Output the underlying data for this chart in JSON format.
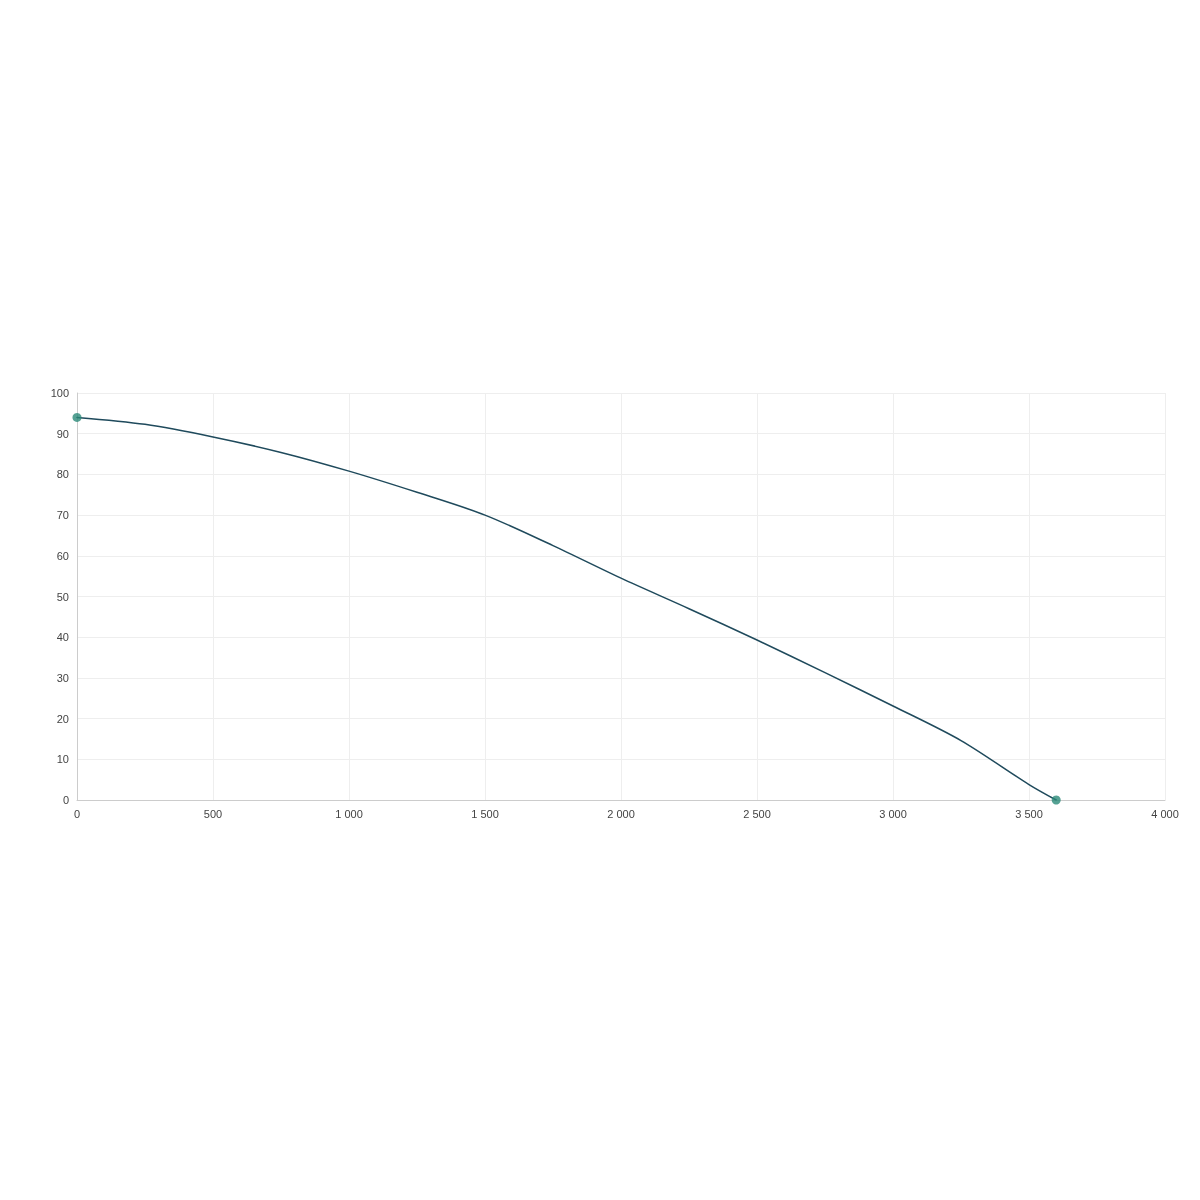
{
  "chart_data": {
    "type": "line",
    "x": [
      0,
      250,
      500,
      750,
      1000,
      1250,
      1500,
      1750,
      2000,
      2250,
      2500,
      2750,
      3000,
      3250,
      3500,
      3600
    ],
    "series": [
      {
        "color": "#1f4a5c",
        "values": [
          94,
          92.3,
          89.2,
          85.4,
          80.8,
          75.6,
          70,
          62.5,
          54.5,
          47,
          39.3,
          31.3,
          23.1,
          14.6,
          3.8,
          0
        ],
        "marker": "none"
      },
      {
        "type": "scatter",
        "color": "#2a8a78",
        "x": [
          0,
          3600
        ],
        "values": [
          94,
          0
        ],
        "marker": "circle"
      }
    ],
    "xlim": [
      0,
      4000
    ],
    "xticks": [
      0,
      {
        "value": 500,
        "label": "500"
      },
      {
        "value": 1000,
        "label": "1 000"
      },
      {
        "value": 1500,
        "label": "1 500"
      },
      {
        "value": 2000,
        "label": "2 000"
      },
      {
        "value": 2500,
        "label": "2 500"
      },
      {
        "value": 3000,
        "label": "3 000"
      },
      {
        "value": 3500,
        "label": "3 500"
      },
      {
        "value": 4000,
        "label": "4 000"
      }
    ],
    "ylim": [
      0,
      100
    ],
    "yticks": [
      0,
      10,
      20,
      30,
      40,
      50,
      60,
      70,
      80,
      90,
      100
    ],
    "grid": true,
    "line_style": "solid"
  }
}
